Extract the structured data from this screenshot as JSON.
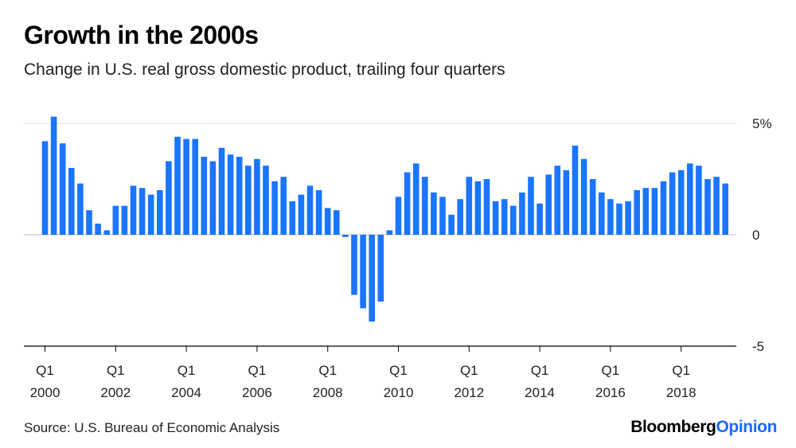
{
  "title": "Growth in the 2000s",
  "subtitle": "Change in U.S. real gross domestic product, trailing four quarters",
  "source": "Source: U.S. Bureau of Economic Analysis",
  "brand": {
    "part1": "Bloomberg",
    "part2": "Opinion"
  },
  "chart_data": {
    "type": "bar",
    "bar_color": "#1a75ff",
    "grid": true,
    "ylim": [
      -5,
      5
    ],
    "yticks": [
      {
        "value": 5,
        "label": "5%"
      },
      {
        "value": 0,
        "label": "0"
      },
      {
        "value": -5,
        "label": "-5"
      }
    ],
    "xticks": [
      {
        "index": 0,
        "line1": "Q1",
        "line2": "2000"
      },
      {
        "index": 8,
        "line1": "Q1",
        "line2": "2002"
      },
      {
        "index": 16,
        "line1": "Q1",
        "line2": "2004"
      },
      {
        "index": 24,
        "line1": "Q1",
        "line2": "2006"
      },
      {
        "index": 32,
        "line1": "Q1",
        "line2": "2008"
      },
      {
        "index": 40,
        "line1": "Q1",
        "line2": "2010"
      },
      {
        "index": 48,
        "line1": "Q1",
        "line2": "2012"
      },
      {
        "index": 56,
        "line1": "Q1",
        "line2": "2014"
      },
      {
        "index": 64,
        "line1": "Q1",
        "line2": "2016"
      },
      {
        "index": 72,
        "line1": "Q1",
        "line2": "2018"
      }
    ],
    "values": [
      4.2,
      5.3,
      4.1,
      3.0,
      2.3,
      1.1,
      0.5,
      0.2,
      1.3,
      1.3,
      2.2,
      2.1,
      1.8,
      2.0,
      3.3,
      4.4,
      4.3,
      4.3,
      3.5,
      3.3,
      3.9,
      3.6,
      3.5,
      3.1,
      3.4,
      3.1,
      2.4,
      2.6,
      1.5,
      1.8,
      2.2,
      2.0,
      1.2,
      1.1,
      -0.1,
      -2.7,
      -3.3,
      -3.9,
      -3.0,
      0.2,
      1.7,
      2.8,
      3.2,
      2.6,
      1.9,
      1.7,
      0.9,
      1.6,
      2.6,
      2.4,
      2.5,
      1.5,
      1.6,
      1.3,
      1.9,
      2.6,
      1.4,
      2.7,
      3.1,
      2.9,
      4.0,
      3.4,
      2.5,
      1.9,
      1.6,
      1.4,
      1.5,
      2.0,
      2.1,
      2.1,
      2.4,
      2.8,
      2.9,
      3.2,
      3.1,
      2.5,
      2.6,
      2.3
    ]
  }
}
